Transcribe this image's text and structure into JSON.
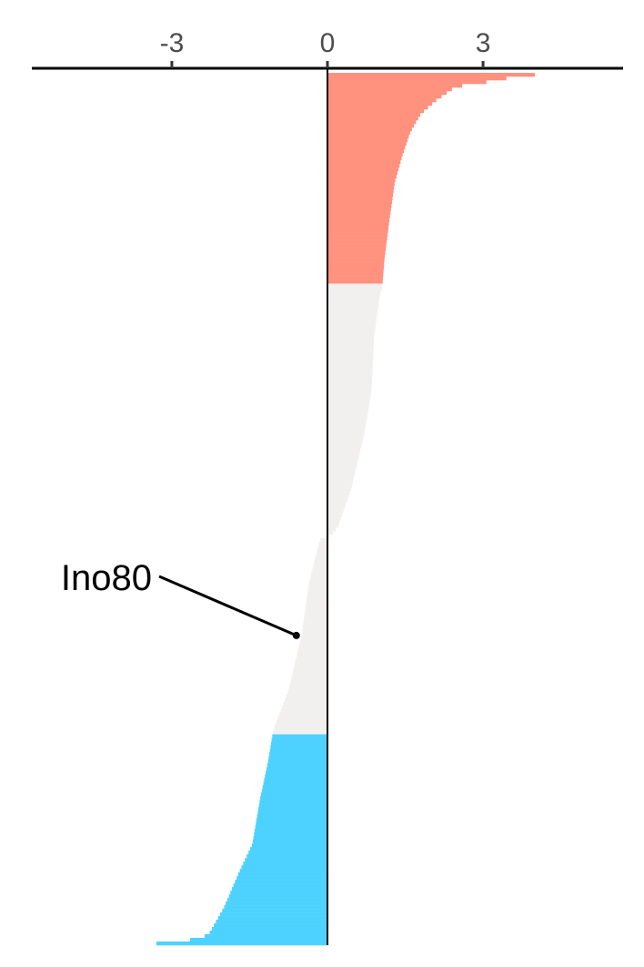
{
  "chart_data": {
    "type": "bar",
    "orientation": "horizontal",
    "title": "",
    "xlabel": "",
    "ylabel": "",
    "x_axis_position": "top",
    "grid": false,
    "legend": "none",
    "xlim": [
      -5.7,
      5.7
    ],
    "xticks": [
      -3,
      0,
      3
    ],
    "xtick_labels": [
      "-3",
      "0",
      "3"
    ],
    "colors": {
      "up": "#ff917f",
      "neutral": "#f1f0ee",
      "down": "#4dd2ff",
      "axis": "#000000",
      "tick_text": "#4d4d4d"
    },
    "value_profile": [
      [
        0,
        4.5
      ],
      [
        2,
        4.0
      ],
      [
        4,
        3.6
      ],
      [
        8,
        3.3
      ],
      [
        14,
        2.6
      ],
      [
        18,
        2.4
      ],
      [
        30,
        2.1
      ],
      [
        45,
        1.8
      ],
      [
        65,
        1.6
      ],
      [
        90,
        1.45
      ],
      [
        120,
        1.3
      ],
      [
        160,
        1.2
      ],
      [
        205,
        1.1
      ],
      [
        240,
        1.05
      ],
      [
        241,
        1.02
      ],
      [
        290,
        0.9
      ],
      [
        350,
        0.85
      ],
      [
        400,
        0.7
      ],
      [
        460,
        0.45
      ],
      [
        500,
        0.2
      ],
      [
        510,
        0.05
      ],
      [
        515,
        -0.15
      ],
      [
        560,
        -0.35
      ],
      [
        620,
        -0.5
      ],
      [
        680,
        -0.75
      ],
      [
        725,
        -1.05
      ],
      [
        726,
        -1.05
      ],
      [
        760,
        -1.15
      ],
      [
        800,
        -1.3
      ],
      [
        850,
        -1.45
      ],
      [
        880,
        -1.7
      ],
      [
        920,
        -2.0
      ],
      [
        950,
        -2.3
      ],
      [
        955,
        -2.65
      ],
      [
        959,
        -3.3
      ],
      [
        961,
        -3.3
      ]
    ],
    "bar_count": 240,
    "categories_up": 58,
    "categories_down": 58,
    "annotations": [
      {
        "label": "Ino80",
        "value": -0.6,
        "rank_fraction": 0.645
      }
    ]
  }
}
